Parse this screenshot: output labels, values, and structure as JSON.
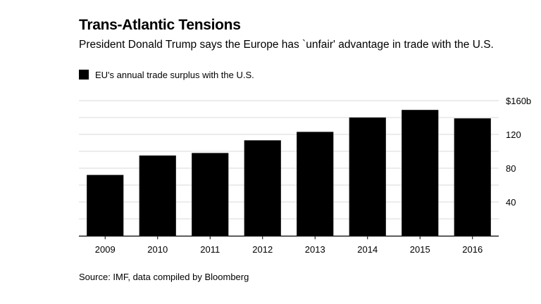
{
  "chart_data": {
    "type": "bar",
    "title": "Trans-Atlantic Tensions",
    "subtitle": "President Donald Trump says the Europe has `unfair' advantage in trade with the U.S.",
    "source": "Source: IMF, data compiled by Bloomberg",
    "xlabel": "",
    "ylabel": "",
    "ylim": [
      0,
      160
    ],
    "yticks": [
      {
        "value": 40,
        "label": "40"
      },
      {
        "value": 80,
        "label": "80"
      },
      {
        "value": 120,
        "label": "120"
      },
      {
        "value": 160,
        "label": "$160b"
      }
    ],
    "grid": true,
    "legend_position": "top-left",
    "categories": [
      "2009",
      "2010",
      "2011",
      "2012",
      "2013",
      "2014",
      "2015",
      "2016"
    ],
    "series": [
      {
        "name": "EU's annual trade surplus with the U.S.",
        "color": "#000000",
        "values": [
          72,
          95,
          98,
          113,
          123,
          140,
          149,
          139
        ]
      }
    ],
    "colors": {
      "bar": "#000000",
      "grid": "#d9d9d9",
      "axis": "#000000"
    }
  }
}
